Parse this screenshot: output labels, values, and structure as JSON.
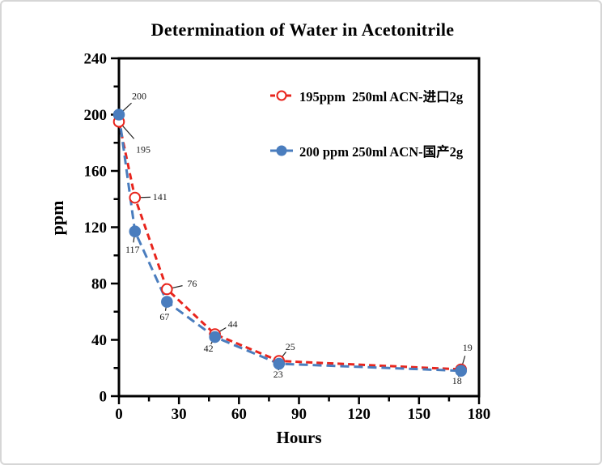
{
  "frame": {
    "border_color": "#d6d6d6",
    "background": "#ffffff"
  },
  "chart_data": {
    "type": "line",
    "title": "Determination of Water in Acetonitrile",
    "xlabel": "Hours",
    "ylabel": "ppm",
    "xlim": [
      0,
      180
    ],
    "ylim": [
      0,
      240
    ],
    "x_major_ticks": [
      0,
      30,
      60,
      90,
      120,
      150,
      180
    ],
    "x_minor_step": 15,
    "y_major_ticks": [
      0,
      40,
      80,
      120,
      160,
      200,
      240
    ],
    "y_minor_step": 20,
    "grid": false,
    "legend_position": "inside-top-right",
    "axis_color": "#000000",
    "label_color": "#1a1a1a",
    "series": [
      {
        "name": "195ppm  250ml ACN-进口2g",
        "color": "#e8251d",
        "line_style": "dashed",
        "marker": "open-circle",
        "x": [
          0,
          8,
          24,
          48,
          80,
          171
        ],
        "values": [
          195,
          141,
          76,
          44,
          25,
          19
        ],
        "point_labels": [
          "195",
          "141",
          "76",
          "44",
          "25",
          "19"
        ],
        "label_offsets": [
          [
            30,
            34
          ],
          [
            31,
            -1
          ],
          [
            31,
            -7
          ],
          [
            22,
            -13
          ],
          [
            14,
            -18
          ],
          [
            8,
            -27
          ]
        ]
      },
      {
        "name": "200 ppm 250ml ACN-国产2g",
        "color": "#4a7dbe",
        "line_style": "dashed",
        "marker": "filled-circle",
        "x": [
          0,
          8,
          24,
          48,
          80,
          171
        ],
        "values": [
          200,
          117,
          67,
          42,
          23,
          18
        ],
        "point_labels": [
          "200",
          "117",
          "67",
          "42",
          "23",
          "18"
        ],
        "label_offsets": [
          [
            25,
            -23
          ],
          [
            -3,
            22
          ],
          [
            -3,
            18
          ],
          [
            -8,
            14
          ],
          [
            -1,
            13
          ],
          [
            -5,
            12
          ]
        ]
      }
    ]
  }
}
